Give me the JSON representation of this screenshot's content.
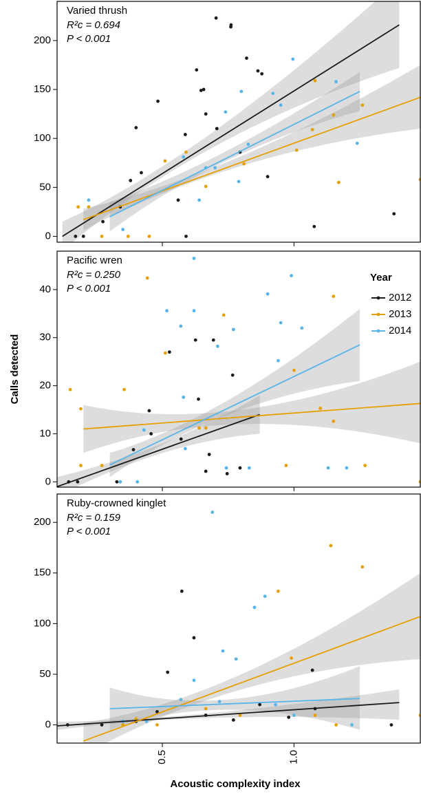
{
  "chart_data": [
    {
      "type": "scatter",
      "title": "Varied thrush",
      "annotations": [
        "R²c = 0.694",
        "P < 0.001"
      ],
      "xlim": [
        0.1,
        1.48
      ],
      "ylim": [
        -6,
        240
      ],
      "yticks": [
        0,
        50,
        100,
        150,
        200
      ],
      "series": [
        {
          "color": "#1a1a1a",
          "x": [
            0.704,
            0.761,
            0.76,
            0.63,
            0.657,
            0.647,
            0.82,
            0.863,
            0.878,
            0.483,
            0.4,
            0.587,
            0.42,
            0.379,
            0.665,
            0.707,
            0.34,
            0.274,
            0.17,
            0.2,
            0.59,
            1.077,
            1.38,
            0.9,
            0.795,
            0.56
          ],
          "y": [
            223,
            216,
            214,
            170,
            150,
            149,
            182,
            169,
            166,
            138,
            111,
            104,
            65,
            57,
            125,
            110,
            30,
            15,
            0,
            0,
            0,
            10,
            23,
            61,
            86,
            37
          ],
          "fit": {
            "x": [
              0.12,
              1.4
            ],
            "y": [
              0,
              216
            ]
          },
          "band": {
            "x": [
              0.12,
              0.7,
              1.4
            ],
            "lower": [
              -15,
              92,
              172
            ],
            "upper": [
              15,
              108,
              262
            ]
          }
        },
        {
          "color": "#E69F00",
          "x": [
            1.08,
            1.26,
            1.15,
            1.07,
            1.17,
            0.51,
            0.59,
            0.37,
            0.27,
            0.45,
            1.01,
            0.81,
            1.48,
            0.18,
            0.22,
            0.665
          ],
          "y": [
            159,
            134,
            124,
            109,
            55,
            77,
            86,
            0,
            0,
            0,
            88,
            74,
            58,
            30,
            30,
            51
          ],
          "fit": {
            "x": [
              0.2,
              1.48
            ],
            "y": [
              17,
              142
            ]
          },
          "band": {
            "x": [
              0.2,
              0.8,
              1.48
            ],
            "lower": [
              6,
              72,
              110
            ],
            "upper": [
              28,
              82,
              175
            ]
          }
        },
        {
          "color": "#56B4E9",
          "x": [
            0.996,
            0.8,
            0.92,
            1.16,
            0.74,
            0.826,
            1.24,
            0.95,
            0.58,
            0.665,
            0.79,
            0.64,
            0.35,
            0.22,
            0.7
          ],
          "y": [
            181,
            148,
            146,
            158,
            127,
            94,
            95,
            134,
            81,
            70,
            56,
            37,
            7,
            37,
            70
          ],
          "fit": {
            "x": [
              0.3,
              1.25
            ],
            "y": [
              20,
              148
            ]
          },
          "band": {
            "x": [
              0.3,
              0.75,
              1.25
            ],
            "lower": [
              5,
              78,
              128
            ],
            "upper": [
              35,
              88,
              168
            ]
          }
        }
      ]
    },
    {
      "type": "scatter",
      "title": "Pacific wren",
      "annotations": [
        "R²c = 0.250",
        "P < 0.001"
      ],
      "ylabel": "Calls detected",
      "legend_title": "Year",
      "xlim": [
        0.1,
        1.48
      ],
      "ylim": [
        -1.1,
        48
      ],
      "yticks": [
        0,
        10,
        20,
        30,
        40
      ],
      "series": [
        {
          "name": "2012",
          "color": "#1a1a1a",
          "x": [
            0.626,
            0.694,
            0.767,
            0.527,
            0.45,
            0.637,
            0.571,
            0.678,
            0.665,
            0.746,
            0.178,
            0.144,
            0.327,
            0.39,
            0.795,
            0.457
          ],
          "y": [
            29.5,
            29.5,
            22.2,
            27,
            14.8,
            17.2,
            8.9,
            5.7,
            2.2,
            1.7,
            0,
            0,
            0,
            6.7,
            2.9,
            10
          ],
          "fit": {
            "x": [
              0.1,
              0.87
            ],
            "y": [
              -1,
              14
            ]
          },
          "band": {
            "x": [
              0.1,
              0.5,
              0.87
            ],
            "lower": [
              -3,
              6,
              10
            ],
            "upper": [
              1,
              8,
              18
            ]
          }
        },
        {
          "name": "2013",
          "color": "#E69F00",
          "x": [
            0.443,
            1.15,
            0.733,
            0.511,
            0.15,
            0.355,
            0.19,
            1.15,
            1.1,
            1.0,
            0.64,
            1.27,
            1.48,
            0.27,
            0.19,
            0.97,
            0.665
          ],
          "y": [
            42.4,
            38.6,
            34.7,
            26.8,
            19.2,
            19.2,
            15.2,
            12.6,
            15.3,
            23.2,
            11.2,
            3.4,
            0,
            3.4,
            3.4,
            3.4,
            11.2
          ],
          "fit": {
            "x": [
              0.2,
              1.48
            ],
            "y": [
              11,
              16.3
            ]
          },
          "band": {
            "x": [
              0.2,
              0.8,
              1.48
            ],
            "lower": [
              6,
              12,
              8
            ],
            "upper": [
              16,
              15,
              25
            ]
          }
        },
        {
          "name": "2014",
          "color": "#56B4E9",
          "x": [
            0.62,
            0.99,
            0.9,
            0.517,
            0.62,
            0.95,
            1.03,
            0.77,
            0.57,
            0.71,
            0.94,
            0.58,
            0.43,
            0.587,
            0.743,
            0.34,
            0.405,
            1.13,
            1.2,
            0.83
          ],
          "y": [
            46.5,
            42.9,
            39.1,
            35.6,
            35.6,
            33.1,
            32,
            31.7,
            32.4,
            28.2,
            25.2,
            17.6,
            10.8,
            6.9,
            2.9,
            0,
            0,
            2.9,
            2.9,
            2.9
          ],
          "fit": {
            "x": [
              0.3,
              1.25
            ],
            "y": [
              3.5,
              28.5
            ]
          },
          "band": {
            "x": [
              0.3,
              0.75,
              1.25
            ],
            "lower": [
              1,
              14,
              21
            ],
            "upper": [
              6,
              17,
              36
            ]
          }
        }
      ]
    },
    {
      "type": "scatter",
      "title": "Ruby-crowned kinglet",
      "annotations": [
        "R²c = 0.159",
        "P < 0.001"
      ],
      "xlabel": "Acoustic complexity index",
      "xlim": [
        0.1,
        1.48
      ],
      "xticks": [
        0.5,
        {
          "value": 1,
          "label": "1.0"
        }
      ],
      "ylim": [
        -18,
        228
      ],
      "yticks": [
        0,
        50,
        100,
        150,
        200
      ],
      "series": [
        {
          "color": "#1a1a1a",
          "x": [
            0.52,
            0.574,
            0.62,
            1.07,
            1.37,
            0.87,
            0.665,
            0.4,
            0.27,
            0.14,
            0.77,
            1.08,
            0.48,
            0.98
          ],
          "y": [
            52,
            132,
            86,
            54,
            0,
            20,
            9.5,
            3.4,
            0,
            0,
            4.8,
            16,
            13,
            7.5
          ],
          "fit": {
            "x": [
              0.1,
              1.4
            ],
            "y": [
              -1,
              22
            ]
          },
          "band": {
            "x": [
              0.1,
              0.7,
              1.4
            ],
            "lower": [
              -5,
              7,
              5
            ],
            "upper": [
              3,
              12,
              35
            ]
          }
        },
        {
          "color": "#E69F00",
          "x": [
            1.14,
            1.26,
            0.94,
            0.99,
            1.48,
            0.795,
            0.48,
            0.665,
            1.08,
            1.16,
            0.35,
            0.4
          ],
          "y": [
            177,
            156,
            132,
            66,
            9.5,
            9.5,
            0,
            16,
            9.5,
            0,
            0,
            6
          ],
          "fit": {
            "x": [
              0.2,
              1.48
            ],
            "y": [
              -16,
              107
            ]
          },
          "band": {
            "x": [
              0.2,
              0.8,
              1.48
            ],
            "lower": [
              -30,
              35,
              65
            ],
            "upper": [
              2,
              50,
              150
            ]
          }
        },
        {
          "color": "#56B4E9",
          "x": [
            0.69,
            0.85,
            0.89,
            0.73,
            0.78,
            0.62,
            0.57,
            0.717,
            1.22,
            1.0,
            0.44,
            0.35,
            0.93
          ],
          "y": [
            210,
            116,
            127,
            73,
            65,
            44,
            25,
            23,
            0,
            9.5,
            3.4,
            3.4,
            20
          ],
          "fit": {
            "x": [
              0.3,
              1.25
            ],
            "y": [
              16,
              26
            ]
          },
          "band": {
            "x": [
              0.3,
              0.75,
              1.25
            ],
            "lower": [
              -5,
              15,
              -5
            ],
            "upper": [
              37,
              25,
              58
            ]
          }
        }
      ]
    }
  ]
}
